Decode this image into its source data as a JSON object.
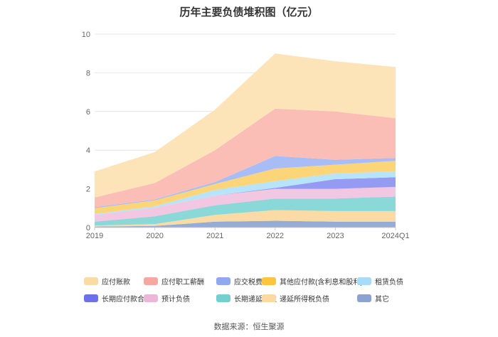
{
  "chart_data": {
    "type": "area",
    "stacked": true,
    "title": "历年主要负债堆积图（亿元）",
    "x": [
      "2019",
      "2020",
      "2021",
      "2022",
      "2023",
      "2024Q1"
    ],
    "ylim": [
      0,
      10
    ],
    "yticks": [
      "0",
      "2",
      "4",
      "6",
      "8",
      "10"
    ],
    "grid": true,
    "legend_position": "bottom",
    "series": [
      {
        "name": "其它",
        "color": "#8fa8d4",
        "values": [
          0.05,
          0.08,
          0.3,
          0.35,
          0.3,
          0.3
        ]
      },
      {
        "name": "递延所得税负债",
        "color": "#fbd9a0",
        "values": [
          0.05,
          0.1,
          0.35,
          0.55,
          0.55,
          0.55
        ]
      },
      {
        "name": "长期递延收益",
        "color": "#84d6d6",
        "values": [
          0.2,
          0.4,
          0.5,
          0.6,
          0.65,
          0.75
        ]
      },
      {
        "name": "预计负债",
        "color": "#f1c4e0",
        "values": [
          0.35,
          0.45,
          0.5,
          0.5,
          0.5,
          0.5
        ]
      },
      {
        "name": "长期应付款合计",
        "color": "#8f95f2",
        "values": [
          0.0,
          0.0,
          0.0,
          0.05,
          0.5,
          0.5
        ]
      },
      {
        "name": "租赁负债",
        "color": "#b4e3fa",
        "values": [
          0.05,
          0.07,
          0.3,
          0.35,
          0.3,
          0.3
        ]
      },
      {
        "name": "其他应付款(含利息和股利)",
        "color": "#fdd372",
        "values": [
          0.3,
          0.3,
          0.3,
          0.65,
          0.45,
          0.55
        ]
      },
      {
        "name": "应交税费",
        "color": "#a3b8f5",
        "values": [
          0.05,
          0.05,
          0.1,
          0.65,
          0.25,
          0.15
        ]
      },
      {
        "name": "应付职工薪酬",
        "color": "#fbbab3",
        "values": [
          0.5,
          0.85,
          1.65,
          2.45,
          2.5,
          2.05
        ]
      },
      {
        "name": "应付账款",
        "color": "#fde3b4",
        "values": [
          1.35,
          1.6,
          2.1,
          2.85,
          2.6,
          2.65
        ]
      }
    ]
  },
  "legend": {
    "items": [
      {
        "label": "应付账款",
        "color": "#fbdba5"
      },
      {
        "label": "应付职工薪酬",
        "color": "#f7a79f"
      },
      {
        "label": "应交税费",
        "color": "#8fa8f0"
      },
      {
        "label": "其他应付款(含利息和股利)",
        "color": "#fcc43f"
      },
      {
        "label": "租赁负债",
        "color": "#a6dcf7"
      },
      {
        "label": "长期应付款合计",
        "color": "#6b72e8"
      },
      {
        "label": "预计负债",
        "color": "#ebb6d8"
      },
      {
        "label": "长期递延收益",
        "color": "#74cfcf"
      },
      {
        "label": "递延所得税负债",
        "color": "#fbd9a0"
      },
      {
        "label": "其它",
        "color": "#8aa3d0"
      }
    ]
  },
  "footer": {
    "source": "数据来源：恒生聚源"
  }
}
